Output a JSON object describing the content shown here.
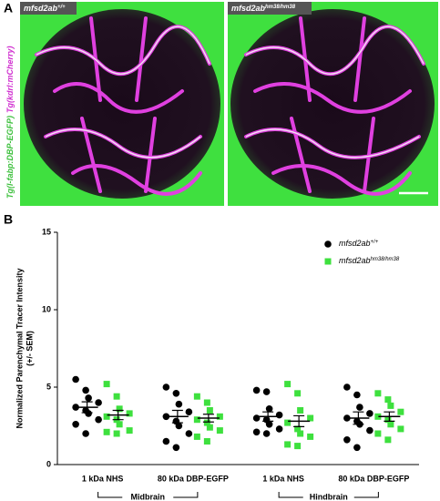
{
  "panel_a": {
    "label": "A",
    "images": [
      {
        "genotype": "mfsd2ab",
        "sup": "+/+"
      },
      {
        "genotype": "mfsd2ab",
        "sup": "hm38/hm38"
      }
    ],
    "side_label_green": "Tg(l-fabp:DBP-EGFP)",
    "side_label_magenta": "Tg(kdrl:mCherry)"
  },
  "chart_data": {
    "type": "dot",
    "panel_label": "B",
    "ylabel": "Normalized Parenchymal Tracer Intensity",
    "ylabel_sub": "(+/- SEM)",
    "ylim": [
      0,
      15
    ],
    "yticks": [
      0,
      5,
      10,
      15
    ],
    "categories": [
      "1 kDa NHS",
      "80 kDa DBP-EGFP",
      "1 kDa NHS",
      "80 kDa DBP-EGFP"
    ],
    "groups": [
      {
        "name": "Midbrain",
        "from": 0,
        "to": 1
      },
      {
        "name": "Hindbrain",
        "from": 2,
        "to": 3
      }
    ],
    "legend": "upper right",
    "series": [
      {
        "name": "mfsd2ab",
        "sup": "+/+",
        "color": "#000000",
        "marker": "circle",
        "values": [
          [
            5.5,
            4.8,
            4.3,
            4.0,
            3.7,
            3.5,
            3.3,
            2.9,
            2.6,
            2.0
          ],
          [
            5.0,
            4.6,
            3.9,
            3.4,
            3.1,
            2.8,
            2.5,
            2.0,
            1.5,
            1.1
          ],
          [
            4.8,
            4.7,
            3.6,
            3.2,
            3.0,
            2.9,
            2.6,
            2.3,
            2.1,
            2.0
          ],
          [
            5.0,
            4.5,
            3.7,
            3.3,
            3.0,
            2.8,
            2.6,
            2.2,
            1.6,
            1.1
          ]
        ],
        "means": [
          3.7,
          3.1,
          3.1,
          3.0
        ],
        "sems": [
          0.35,
          0.4,
          0.3,
          0.4
        ]
      },
      {
        "name": "mfsd2ab",
        "sup": "hm38/hm38",
        "color": "#3ee03e",
        "marker": "square",
        "values": [
          [
            5.2,
            4.4,
            3.6,
            3.3,
            3.1,
            2.9,
            2.6,
            2.2,
            2.1,
            2.0
          ],
          [
            4.4,
            4.0,
            3.5,
            3.1,
            2.9,
            2.7,
            2.4,
            2.2,
            1.8,
            1.5
          ],
          [
            5.2,
            4.6,
            3.5,
            3.0,
            2.7,
            2.3,
            2.0,
            1.8,
            1.3,
            1.2
          ],
          [
            4.6,
            4.2,
            3.8,
            3.4,
            3.1,
            2.9,
            2.6,
            2.3,
            2.0,
            1.6
          ]
        ],
        "means": [
          3.2,
          3.0,
          2.8,
          3.1
        ],
        "sems": [
          0.3,
          0.25,
          0.35,
          0.3
        ]
      }
    ]
  }
}
